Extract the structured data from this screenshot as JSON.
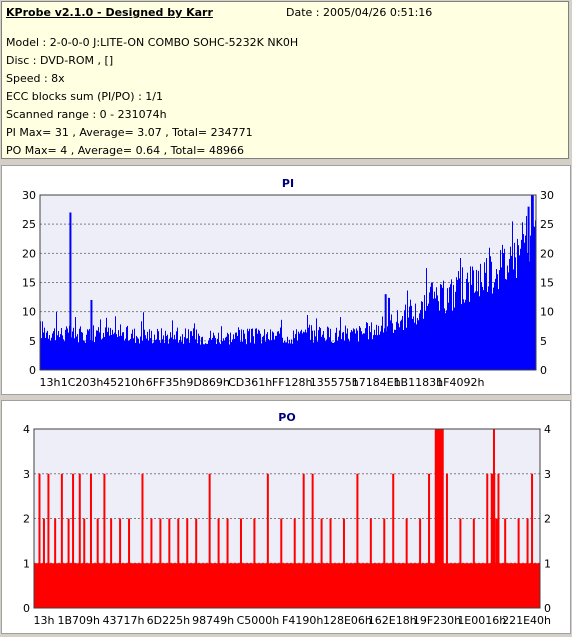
{
  "header": {
    "app_title": "KProbe v2.1.0 - Designed by Karr",
    "date": "Date : 2005/04/26 0:51:16",
    "lines": [
      "Model : 2-0-0-0 J:LITE-ON COMBO SOHC-5232K NK0H",
      "Disc : DVD-ROM ,  []",
      "Speed : 8x",
      "ECC blocks sum (PI/PO) : 1/1",
      "Scanned range : 0 - 231074h",
      "PI Max= 31 , Average= 3.07 , Total= 234771",
      "PO Max= 4 , Average= 0.64 , Total= 48966"
    ]
  },
  "colors": {
    "pi": "#0000ff",
    "po": "#ff0000",
    "plot_bg": "#eeeef8",
    "title": "#00007f",
    "grid": "#808080"
  },
  "chart_data": [
    {
      "type": "area",
      "title": "PI",
      "xlabel": "",
      "ylabel": "",
      "ylim": [
        0,
        30
      ],
      "yticks": [
        0,
        5,
        10,
        15,
        20,
        25,
        30
      ],
      "grid": true,
      "x_tick_labels": [
        "13h",
        "1C203h",
        "45210h",
        "6FF35h",
        "9D869h",
        "CD361h",
        "FF128h",
        "135575h",
        "17184Eh",
        "1B1183h",
        "1F4092h"
      ],
      "x_tick_positions": [
        0,
        1,
        2,
        3,
        4,
        5,
        6,
        7,
        8,
        9,
        10
      ],
      "x_range": [
        0,
        11.8
      ],
      "profile_x": [
        0,
        0.3,
        0.8,
        1.5,
        2.5,
        3.5,
        4.5,
        5.5,
        6.5,
        7.5,
        8.0,
        8.5,
        9.0,
        9.5,
        10.0,
        10.5,
        11.0,
        11.5,
        11.8
      ],
      "profile_y": [
        7,
        6.5,
        6,
        6.2,
        6,
        5.8,
        5.7,
        5.8,
        6,
        6.2,
        7,
        8.5,
        10,
        12,
        14,
        16.5,
        18,
        21,
        23
      ],
      "spikes": [
        [
          0.7,
          27
        ],
        [
          1.2,
          12
        ],
        [
          11.7,
          30.5
        ],
        [
          11.6,
          28
        ],
        [
          8.2,
          13
        ],
        [
          9.3,
          15
        ]
      ]
    },
    {
      "type": "bar",
      "title": "PO",
      "xlabel": "",
      "ylabel": "",
      "ylim": [
        0,
        4
      ],
      "yticks": [
        0,
        1,
        2,
        3,
        4
      ],
      "grid": true,
      "x_tick_labels": [
        "13h",
        "1B709h",
        "43717h",
        "6D225h",
        "98749h",
        "C5000h",
        "F4190h",
        "128E06h",
        "162E18h",
        "19F230h",
        "1E0016h",
        "221E40h"
      ],
      "x_tick_positions": [
        0,
        1,
        2,
        3,
        4,
        5,
        6,
        7,
        8,
        9,
        10,
        11
      ],
      "x_range": [
        0,
        11.3
      ],
      "baseline": 1,
      "spikes": [
        [
          0.1,
          3
        ],
        [
          0.2,
          2
        ],
        [
          0.3,
          3
        ],
        [
          0.45,
          2
        ],
        [
          0.6,
          3
        ],
        [
          0.75,
          2
        ],
        [
          0.85,
          3
        ],
        [
          1.0,
          3
        ],
        [
          1.1,
          2
        ],
        [
          1.25,
          3
        ],
        [
          1.4,
          2
        ],
        [
          1.55,
          3
        ],
        [
          1.7,
          2
        ],
        [
          1.9,
          2
        ],
        [
          2.1,
          2
        ],
        [
          2.4,
          3
        ],
        [
          2.6,
          2
        ],
        [
          2.8,
          2
        ],
        [
          3.0,
          2
        ],
        [
          3.2,
          2
        ],
        [
          3.4,
          2
        ],
        [
          3.6,
          2
        ],
        [
          3.9,
          3
        ],
        [
          4.1,
          2
        ],
        [
          4.3,
          2
        ],
        [
          4.6,
          2
        ],
        [
          4.9,
          2
        ],
        [
          5.2,
          3
        ],
        [
          5.5,
          2
        ],
        [
          5.8,
          2
        ],
        [
          6.0,
          3
        ],
        [
          6.2,
          3
        ],
        [
          6.4,
          2
        ],
        [
          6.6,
          2
        ],
        [
          6.9,
          2
        ],
        [
          7.2,
          3
        ],
        [
          7.5,
          2
        ],
        [
          7.8,
          2
        ],
        [
          8.0,
          3
        ],
        [
          8.3,
          2
        ],
        [
          8.6,
          2
        ],
        [
          8.8,
          3
        ],
        [
          9.0,
          4
        ],
        [
          9.1,
          4
        ],
        [
          9.2,
          3
        ],
        [
          9.5,
          2
        ],
        [
          9.8,
          2
        ],
        [
          10.1,
          3
        ],
        [
          10.25,
          4
        ],
        [
          10.35,
          3
        ],
        [
          10.5,
          2
        ],
        [
          10.8,
          2
        ],
        [
          11.0,
          2
        ],
        [
          11.1,
          3
        ]
      ],
      "spike_bands": [
        [
          8.95,
          9.15,
          4
        ],
        [
          10.2,
          10.3,
          3
        ],
        [
          10.3,
          10.38,
          2
        ]
      ]
    }
  ]
}
